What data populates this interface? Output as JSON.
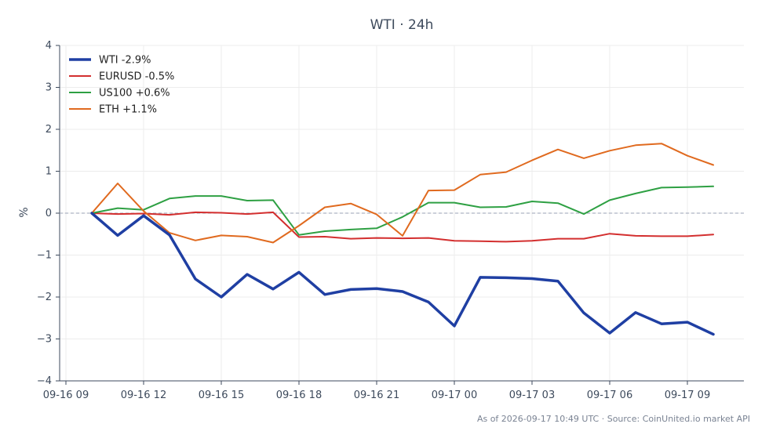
{
  "chart_data": {
    "type": "line",
    "title": "WTI · 24h",
    "ylabel": "%",
    "xlabel": "",
    "ylim": [
      -4,
      4
    ],
    "yticks": [
      "4",
      "3",
      "2",
      "1",
      "0",
      "−1",
      "−2",
      "−3",
      "−4"
    ],
    "yticks_values": [
      4,
      3,
      2,
      1,
      0,
      -1,
      -2,
      -3,
      -4
    ],
    "xticks": [
      "09-16 09",
      "09-16 12",
      "09-16 15",
      "09-16 18",
      "09-16 21",
      "09-17 00",
      "09-17 03",
      "09-17 06",
      "09-17 09"
    ],
    "x": [
      "09-16 10",
      "09-16 11",
      "09-16 12",
      "09-16 13",
      "09-16 14",
      "09-16 15",
      "09-16 16",
      "09-16 17",
      "09-16 18",
      "09-16 19",
      "09-16 20",
      "09-16 21",
      "09-16 22",
      "09-16 23",
      "09-17 00",
      "09-17 01",
      "09-17 02",
      "09-17 03",
      "09-17 04",
      "09-17 05",
      "09-17 06",
      "09-17 07",
      "09-17 08",
      "09-17 09",
      "09-17 10"
    ],
    "grid": true,
    "reference_line": 0,
    "legend_position": "top-left",
    "series": [
      {
        "name": "WTI -2.9%",
        "color": "#1f3fa3",
        "width": 3.5,
        "values": [
          0,
          -0.53,
          -0.06,
          -0.52,
          -1.57,
          -2.0,
          -1.46,
          -1.81,
          -1.41,
          -1.94,
          -1.82,
          -1.8,
          -1.87,
          -2.12,
          -2.69,
          -1.53,
          -1.54,
          -1.56,
          -1.62,
          -2.38,
          -2.86,
          -2.37,
          -2.64,
          -2.6,
          -2.89
        ]
      },
      {
        "name": "EURUSD -0.5%",
        "color": "#d32f2f",
        "width": 2,
        "values": [
          0,
          -0.02,
          -0.01,
          -0.04,
          0.02,
          0.01,
          -0.02,
          0.02,
          -0.57,
          -0.56,
          -0.61,
          -0.59,
          -0.6,
          -0.59,
          -0.66,
          -0.67,
          -0.68,
          -0.66,
          -0.61,
          -0.61,
          -0.49,
          -0.54,
          -0.55,
          -0.55,
          -0.51
        ]
      },
      {
        "name": "US100 +0.6%",
        "color": "#2ea043",
        "width": 2,
        "values": [
          0,
          0.12,
          0.08,
          0.35,
          0.41,
          0.41,
          0.3,
          0.31,
          -0.52,
          -0.43,
          -0.39,
          -0.36,
          -0.09,
          0.25,
          0.25,
          0.14,
          0.15,
          0.28,
          0.24,
          -0.02,
          0.31,
          0.47,
          0.61,
          0.62,
          0.64
        ]
      },
      {
        "name": "ETH +1.1%",
        "color": "#e06a1f",
        "width": 2,
        "values": [
          0,
          0.71,
          0.05,
          -0.47,
          -0.65,
          -0.53,
          -0.56,
          -0.7,
          -0.3,
          0.14,
          0.23,
          -0.03,
          -0.54,
          0.54,
          0.55,
          0.92,
          0.98,
          1.26,
          1.52,
          1.31,
          1.49,
          1.62,
          1.66,
          1.37,
          1.15
        ]
      }
    ]
  },
  "footer": "As of 2026-09-17 10:49 UTC · Source: CoinUnited.io market API"
}
